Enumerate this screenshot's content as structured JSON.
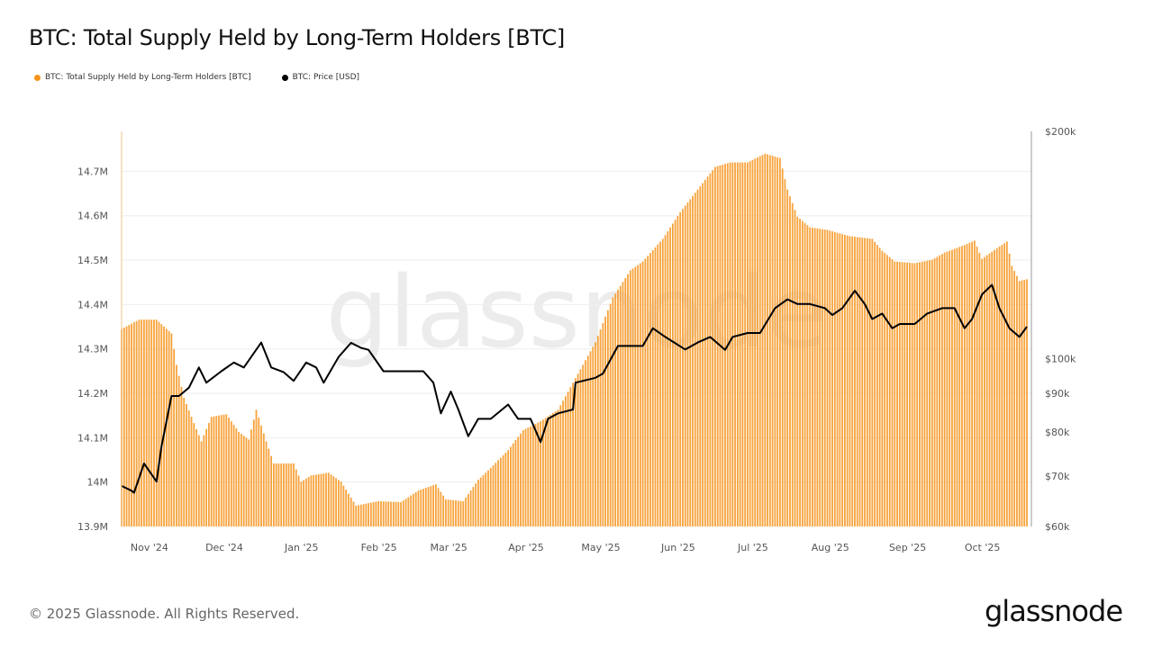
{
  "title": "BTC: Total Supply Held by Long-Term Holders [BTC]",
  "footer": "© 2025 Glassnode. All Rights Reserved.",
  "logo": "glassnode",
  "watermark": "glassnode",
  "chart_data": {
    "type": "bar+line",
    "title": "BTC: Total Supply Held by Long-Term Holders [BTC]",
    "legend_position": "top-left",
    "grid": true,
    "x_ticks": [
      "Nov '24",
      "Dec '24",
      "Jan '25",
      "Feb '25",
      "Mar '25",
      "Apr '25",
      "May '25",
      "Jun '25",
      "Jul '25",
      "Aug '25",
      "Sep '25",
      "Oct '25"
    ],
    "x_tick_dates": [
      "2024-11-01",
      "2024-12-01",
      "2025-01-01",
      "2025-02-01",
      "2025-03-01",
      "2025-04-01",
      "2025-05-01",
      "2025-06-01",
      "2025-07-01",
      "2025-08-01",
      "2025-09-01",
      "2025-10-01"
    ],
    "xlim": [
      "2024-10-23",
      "2025-10-21"
    ],
    "left_axis": {
      "ticks": [
        "13.9M",
        "14M",
        "14.1M",
        "14.2M",
        "14.3M",
        "14.4M",
        "14.5M",
        "14.6M",
        "14.7M"
      ],
      "tick_values": [
        13.9,
        14.0,
        14.1,
        14.2,
        14.3,
        14.4,
        14.5,
        14.6,
        14.7
      ],
      "unit": "M BTC",
      "range": [
        13.9,
        14.79
      ]
    },
    "right_axis": {
      "ticks": [
        "$60k",
        "$70k",
        "$80k",
        "$90k",
        "$100k",
        "$200k"
      ],
      "tick_values": [
        60,
        70,
        80,
        90,
        100,
        200
      ],
      "unit": "k USD",
      "scale": "log",
      "range": [
        60,
        200
      ]
    },
    "series": [
      {
        "name": "BTC: Total Supply Held by Long-Term Holders [BTC]",
        "type": "bar",
        "axis": "left",
        "color": "#f7931a",
        "points": [
          [
            "2024-10-23",
            14.345
          ],
          [
            "2024-10-30",
            14.366
          ],
          [
            "2024-11-06",
            14.366
          ],
          [
            "2024-11-12",
            14.335
          ],
          [
            "2024-11-14",
            14.264
          ],
          [
            "2024-11-17",
            14.19
          ],
          [
            "2024-11-21",
            14.133
          ],
          [
            "2024-11-24",
            14.092
          ],
          [
            "2024-11-28",
            14.147
          ],
          [
            "2024-12-04",
            14.153
          ],
          [
            "2024-12-09",
            14.113
          ],
          [
            "2024-12-13",
            14.096
          ],
          [
            "2024-12-16",
            14.163
          ],
          [
            "2024-12-20",
            14.092
          ],
          [
            "2024-12-23",
            14.042
          ],
          [
            "2024-12-31",
            14.042
          ],
          [
            "2025-01-03",
            14.001
          ],
          [
            "2025-01-07",
            14.015
          ],
          [
            "2025-01-14",
            14.021
          ],
          [
            "2025-01-19",
            14.001
          ],
          [
            "2025-01-25",
            13.947
          ],
          [
            "2025-02-03",
            13.957
          ],
          [
            "2025-02-12",
            13.955
          ],
          [
            "2025-02-19",
            13.981
          ],
          [
            "2025-02-26",
            13.995
          ],
          [
            "2025-03-02",
            13.961
          ],
          [
            "2025-03-09",
            13.957
          ],
          [
            "2025-03-15",
            14.005
          ],
          [
            "2025-03-20",
            14.032
          ],
          [
            "2025-03-27",
            14.072
          ],
          [
            "2025-04-02",
            14.117
          ],
          [
            "2025-04-09",
            14.137
          ],
          [
            "2025-04-16",
            14.163
          ],
          [
            "2025-04-23",
            14.234
          ],
          [
            "2025-05-01",
            14.315
          ],
          [
            "2025-05-08",
            14.416
          ],
          [
            "2025-05-15",
            14.477
          ],
          [
            "2025-05-20",
            14.497
          ],
          [
            "2025-05-28",
            14.548
          ],
          [
            "2025-06-04",
            14.608
          ],
          [
            "2025-06-11",
            14.659
          ],
          [
            "2025-06-18",
            14.71
          ],
          [
            "2025-06-24",
            14.72
          ],
          [
            "2025-07-01",
            14.72
          ],
          [
            "2025-07-08",
            14.74
          ],
          [
            "2025-07-14",
            14.73
          ],
          [
            "2025-07-17",
            14.659
          ],
          [
            "2025-07-21",
            14.598
          ],
          [
            "2025-07-26",
            14.574
          ],
          [
            "2025-08-02",
            14.568
          ],
          [
            "2025-08-11",
            14.554
          ],
          [
            "2025-08-20",
            14.548
          ],
          [
            "2025-08-24",
            14.521
          ],
          [
            "2025-08-29",
            14.497
          ],
          [
            "2025-09-06",
            14.493
          ],
          [
            "2025-09-13",
            14.501
          ],
          [
            "2025-09-18",
            14.517
          ],
          [
            "2025-09-26",
            14.534
          ],
          [
            "2025-09-30",
            14.544
          ],
          [
            "2025-10-03",
            14.503
          ],
          [
            "2025-10-08",
            14.523
          ],
          [
            "2025-10-13",
            14.542
          ],
          [
            "2025-10-15",
            14.487
          ],
          [
            "2025-10-18",
            14.453
          ],
          [
            "2025-10-21",
            14.457
          ]
        ]
      },
      {
        "name": "BTC: Price [USD]",
        "type": "line",
        "axis": "right",
        "color": "#000000",
        "points": [
          [
            "2024-10-23",
            67.9
          ],
          [
            "2024-10-27",
            66.9
          ],
          [
            "2024-10-28",
            66.5
          ],
          [
            "2024-11-01",
            72.7
          ],
          [
            "2024-11-06",
            68.8
          ],
          [
            "2024-11-08",
            76.6
          ],
          [
            "2024-11-12",
            89.3
          ],
          [
            "2024-11-15",
            89.3
          ],
          [
            "2024-11-19",
            91.6
          ],
          [
            "2024-11-23",
            97.4
          ],
          [
            "2024-11-26",
            93.0
          ],
          [
            "2024-12-02",
            96.3
          ],
          [
            "2024-12-07",
            98.9
          ],
          [
            "2024-12-11",
            97.4
          ],
          [
            "2024-12-18",
            105.1
          ],
          [
            "2024-12-22",
            97.4
          ],
          [
            "2024-12-27",
            96.0
          ],
          [
            "2024-12-31",
            93.5
          ],
          [
            "2025-01-05",
            98.9
          ],
          [
            "2025-01-09",
            97.4
          ],
          [
            "2025-01-12",
            93.0
          ],
          [
            "2025-01-18",
            100.6
          ],
          [
            "2025-01-23",
            105.0
          ],
          [
            "2025-01-27",
            103.4
          ],
          [
            "2025-01-30",
            102.8
          ],
          [
            "2025-02-05",
            96.3
          ],
          [
            "2025-02-12",
            96.3
          ],
          [
            "2025-02-21",
            96.3
          ],
          [
            "2025-02-25",
            93.0
          ],
          [
            "2025-02-28",
            84.7
          ],
          [
            "2025-03-04",
            90.5
          ],
          [
            "2025-03-07",
            85.7
          ],
          [
            "2025-03-11",
            79.0
          ],
          [
            "2025-03-15",
            83.3
          ],
          [
            "2025-03-20",
            83.3
          ],
          [
            "2025-03-27",
            87.0
          ],
          [
            "2025-03-31",
            83.3
          ],
          [
            "2025-04-05",
            83.3
          ],
          [
            "2025-04-09",
            77.6
          ],
          [
            "2025-04-12",
            83.3
          ],
          [
            "2025-04-16",
            84.7
          ],
          [
            "2025-04-22",
            85.7
          ],
          [
            "2025-04-23",
            93.0
          ],
          [
            "2025-05-01",
            94.4
          ],
          [
            "2025-05-04",
            95.6
          ],
          [
            "2025-05-10",
            104.0
          ],
          [
            "2025-05-15",
            104.0
          ],
          [
            "2025-05-20",
            104.0
          ],
          [
            "2025-05-24",
            109.8
          ],
          [
            "2025-05-29",
            106.9
          ],
          [
            "2025-06-06",
            102.9
          ],
          [
            "2025-06-11",
            105.1
          ],
          [
            "2025-06-16",
            106.9
          ],
          [
            "2025-06-22",
            102.8
          ],
          [
            "2025-06-25",
            106.9
          ],
          [
            "2025-07-01",
            108.2
          ],
          [
            "2025-07-06",
            108.2
          ],
          [
            "2025-07-12",
            116.7
          ],
          [
            "2025-07-17",
            119.9
          ],
          [
            "2025-07-21",
            118.2
          ],
          [
            "2025-07-26",
            118.2
          ],
          [
            "2025-08-01",
            116.7
          ],
          [
            "2025-08-04",
            114.3
          ],
          [
            "2025-08-08",
            116.7
          ],
          [
            "2025-08-13",
            123.1
          ],
          [
            "2025-08-17",
            118.2
          ],
          [
            "2025-08-20",
            112.9
          ],
          [
            "2025-08-24",
            114.8
          ],
          [
            "2025-08-28",
            109.8
          ],
          [
            "2025-08-31",
            111.2
          ],
          [
            "2025-09-06",
            111.2
          ],
          [
            "2025-09-11",
            114.8
          ],
          [
            "2025-09-17",
            116.7
          ],
          [
            "2025-09-22",
            116.7
          ],
          [
            "2025-09-26",
            109.8
          ],
          [
            "2025-09-29",
            112.9
          ],
          [
            "2025-10-03",
            121.7
          ],
          [
            "2025-10-07",
            125.3
          ],
          [
            "2025-10-10",
            116.7
          ],
          [
            "2025-10-14",
            109.8
          ],
          [
            "2025-10-18",
            106.9
          ],
          [
            "2025-10-21",
            110.3
          ]
        ]
      }
    ]
  }
}
